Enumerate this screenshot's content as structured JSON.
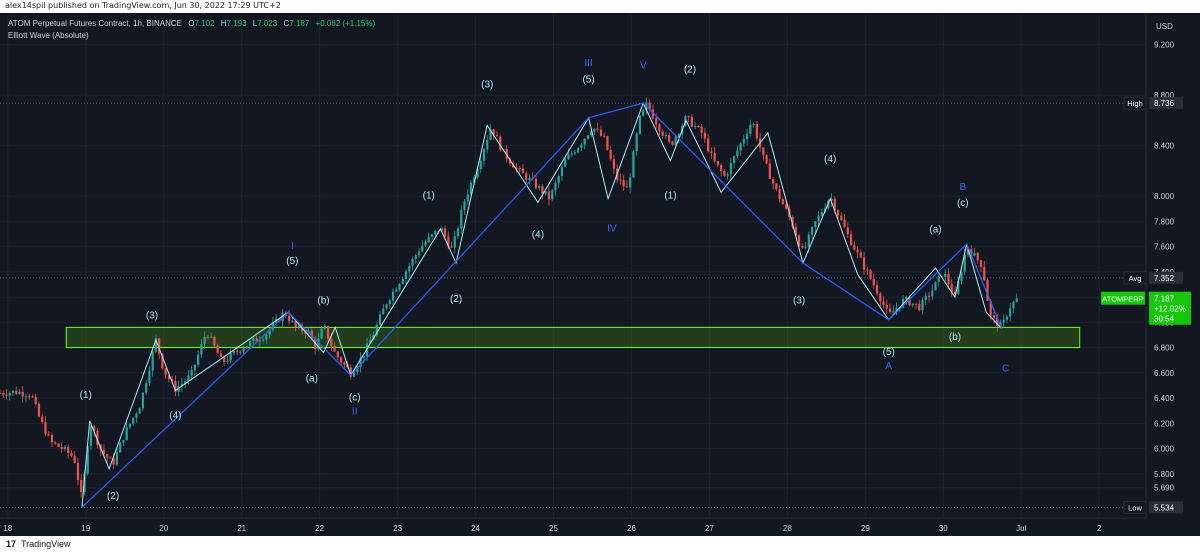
{
  "publish_line": "alex14spil published on TradingView.com, Jun 30, 2022 17:29 UTC+2",
  "header": {
    "symbol": "ATOM Perpetual Futures Contract, 1h, BINANCE",
    "o_label": "O",
    "o_value": "7.102",
    "h_label": "H",
    "h_value": "7.193",
    "l_label": "L",
    "l_value": "7.023",
    "c_label": "C",
    "c_value": "7.187",
    "change": "+0.082 (+1.15%)",
    "indicator": "Elliott Wave (Absolute)"
  },
  "footer": {
    "logo": "17",
    "brand": "TradingView"
  },
  "colors": {
    "background": "#131722",
    "up": "#26a69a",
    "down": "#ef5350",
    "green": "#76ff03",
    "wave_light": "#b2ebf2",
    "wave_blue": "#2962ff",
    "label_light": "#b2ebf2",
    "label_blue": "#2f6bff"
  },
  "chart_data": {
    "type": "candlestick",
    "symbol": "ATOMPERP",
    "currency": "USD",
    "ylim": [
      5.45,
      9.45
    ],
    "y_ticks": [
      "9.200",
      "8.800",
      "8.400",
      "8.000",
      "7.800",
      "7.600",
      "7.400",
      "7.200",
      "7.000",
      "6.800",
      "6.600",
      "6.400",
      "6.200",
      "6.000",
      "5.800",
      "5.690"
    ],
    "x_ticks": [
      "18",
      "19",
      "20",
      "21",
      "22",
      "23",
      "24",
      "25",
      "26",
      "27",
      "28",
      "29",
      "30",
      "Jul",
      "2"
    ],
    "x_range_days": [
      17.9,
      32.6
    ],
    "markers": {
      "high": {
        "label": "High",
        "value": 8.736
      },
      "avg": {
        "label": "Avg",
        "value": 7.352
      },
      "low": {
        "label": "Low",
        "value": 5.534
      },
      "last": {
        "label": "ATOMPERP",
        "value": "7.187",
        "change": "+12.02%",
        "countdown": "30:54"
      }
    },
    "zone": {
      "from_day": 18.75,
      "to_day": 31.75,
      "low": 6.8,
      "high": 6.96
    },
    "price_path": [
      [
        17.9,
        6.44
      ],
      [
        18.1,
        6.45
      ],
      [
        18.3,
        6.43
      ],
      [
        18.4,
        6.25
      ],
      [
        18.55,
        6.05
      ],
      [
        18.7,
        6.0
      ],
      [
        18.85,
        5.93
      ],
      [
        18.95,
        5.6
      ],
      [
        19.0,
        5.88
      ],
      [
        19.05,
        6.22
      ],
      [
        19.2,
        5.98
      ],
      [
        19.35,
        5.88
      ],
      [
        19.5,
        6.12
      ],
      [
        19.7,
        6.35
      ],
      [
        19.9,
        6.86
      ],
      [
        20.0,
        6.62
      ],
      [
        20.15,
        6.47
      ],
      [
        20.35,
        6.58
      ],
      [
        20.55,
        6.93
      ],
      [
        20.75,
        6.68
      ],
      [
        21.0,
        6.8
      ],
      [
        21.3,
        6.9
      ],
      [
        21.55,
        7.08
      ],
      [
        21.7,
        6.95
      ],
      [
        21.85,
        6.93
      ],
      [
        21.95,
        6.8
      ],
      [
        22.05,
        6.97
      ],
      [
        22.2,
        6.75
      ],
      [
        22.4,
        6.6
      ],
      [
        22.55,
        6.73
      ],
      [
        22.7,
        6.92
      ],
      [
        22.85,
        7.15
      ],
      [
        23.05,
        7.35
      ],
      [
        23.3,
        7.6
      ],
      [
        23.55,
        7.75
      ],
      [
        23.7,
        7.57
      ],
      [
        23.85,
        7.95
      ],
      [
        24.05,
        8.28
      ],
      [
        24.2,
        8.55
      ],
      [
        24.35,
        8.35
      ],
      [
        24.55,
        8.2
      ],
      [
        24.75,
        8.1
      ],
      [
        24.95,
        7.98
      ],
      [
        25.15,
        8.28
      ],
      [
        25.35,
        8.42
      ],
      [
        25.5,
        8.55
      ],
      [
        25.65,
        8.45
      ],
      [
        25.8,
        8.15
      ],
      [
        25.95,
        8.05
      ],
      [
        26.1,
        8.6
      ],
      [
        26.2,
        8.73
      ],
      [
        26.35,
        8.55
      ],
      [
        26.5,
        8.4
      ],
      [
        26.7,
        8.62
      ],
      [
        26.9,
        8.5
      ],
      [
        27.05,
        8.28
      ],
      [
        27.2,
        8.15
      ],
      [
        27.35,
        8.35
      ],
      [
        27.55,
        8.6
      ],
      [
        27.7,
        8.28
      ],
      [
        27.85,
        8.05
      ],
      [
        28.05,
        7.8
      ],
      [
        28.2,
        7.55
      ],
      [
        28.35,
        7.78
      ],
      [
        28.55,
        8.0
      ],
      [
        28.75,
        7.72
      ],
      [
        28.95,
        7.48
      ],
      [
        29.15,
        7.25
      ],
      [
        29.3,
        7.05
      ],
      [
        29.5,
        7.18
      ],
      [
        29.7,
        7.12
      ],
      [
        29.85,
        7.25
      ],
      [
        30.0,
        7.4
      ],
      [
        30.15,
        7.2
      ],
      [
        30.3,
        7.6
      ],
      [
        30.5,
        7.45
      ],
      [
        30.6,
        7.05
      ],
      [
        30.75,
        6.96
      ],
      [
        30.85,
        7.12
      ],
      [
        30.95,
        7.187
      ]
    ],
    "waves": [
      {
        "name": "white",
        "points": [
          [
            18.95,
            5.534
          ],
          [
            19.05,
            6.22
          ],
          [
            19.3,
            5.84
          ],
          [
            19.9,
            6.86
          ],
          [
            20.15,
            6.46
          ],
          [
            21.6,
            7.08
          ],
          [
            22.05,
            6.76
          ],
          [
            22.2,
            6.96
          ],
          [
            22.4,
            6.58
          ],
          [
            23.55,
            7.74
          ],
          [
            23.75,
            7.47
          ],
          [
            24.15,
            8.56
          ],
          [
            24.8,
            7.95
          ],
          [
            25.45,
            8.62
          ],
          [
            25.7,
            7.98
          ],
          [
            26.15,
            8.736
          ],
          [
            26.5,
            8.28
          ],
          [
            26.7,
            8.6
          ],
          [
            27.15,
            8.03
          ],
          [
            27.75,
            8.5
          ],
          [
            28.2,
            7.47
          ],
          [
            28.55,
            7.98
          ],
          [
            28.9,
            7.38
          ],
          [
            29.3,
            7.02
          ],
          [
            29.9,
            7.43
          ],
          [
            30.15,
            7.2
          ],
          [
            30.3,
            7.62
          ],
          [
            30.55,
            7.08
          ],
          [
            30.75,
            6.95
          ]
        ]
      },
      {
        "name": "blue",
        "points": [
          [
            18.95,
            5.534
          ],
          [
            21.6,
            7.08
          ],
          [
            22.4,
            6.58
          ],
          [
            25.45,
            8.62
          ],
          [
            26.15,
            8.736
          ],
          [
            28.2,
            7.47
          ],
          [
            29.3,
            7.02
          ],
          [
            30.3,
            7.62
          ],
          [
            30.75,
            6.95
          ]
        ]
      }
    ],
    "wave_labels": [
      {
        "text": "(1)",
        "day": 19.0,
        "price": 6.4,
        "color": "light"
      },
      {
        "text": "(2)",
        "day": 19.35,
        "price": 5.6,
        "color": "light"
      },
      {
        "text": "(3)",
        "day": 19.85,
        "price": 7.03,
        "color": "light"
      },
      {
        "text": "(4)",
        "day": 20.15,
        "price": 6.24,
        "color": "light"
      },
      {
        "text": "(5)",
        "day": 21.65,
        "price": 7.46,
        "color": "light"
      },
      {
        "text": "I",
        "day": 21.65,
        "price": 7.58,
        "color": "blue"
      },
      {
        "text": "(b)",
        "day": 22.05,
        "price": 7.15,
        "color": "light"
      },
      {
        "text": "(a)",
        "day": 21.9,
        "price": 6.53,
        "color": "light"
      },
      {
        "text": "(c)",
        "day": 22.45,
        "price": 6.38,
        "color": "light"
      },
      {
        "text": "II",
        "day": 22.45,
        "price": 6.27,
        "color": "blue"
      },
      {
        "text": "(1)",
        "day": 23.4,
        "price": 7.98,
        "color": "light"
      },
      {
        "text": "(2)",
        "day": 23.75,
        "price": 7.16,
        "color": "light"
      },
      {
        "text": "(3)",
        "day": 24.15,
        "price": 8.86,
        "color": "light"
      },
      {
        "text": "(4)",
        "day": 24.8,
        "price": 7.67,
        "color": "light"
      },
      {
        "text": "(5)",
        "day": 25.45,
        "price": 8.9,
        "color": "light"
      },
      {
        "text": "III",
        "day": 25.45,
        "price": 9.03,
        "color": "blue"
      },
      {
        "text": "IV",
        "day": 25.75,
        "price": 7.72,
        "color": "blue"
      },
      {
        "text": "V",
        "day": 26.15,
        "price": 9.01,
        "color": "blue"
      },
      {
        "text": "(1)",
        "day": 26.5,
        "price": 7.98,
        "color": "light"
      },
      {
        "text": "(2)",
        "day": 26.75,
        "price": 8.98,
        "color": "light"
      },
      {
        "text": "(3)",
        "day": 28.15,
        "price": 7.15,
        "color": "light"
      },
      {
        "text": "(4)",
        "day": 28.55,
        "price": 8.27,
        "color": "light"
      },
      {
        "text": "(5)",
        "day": 29.3,
        "price": 6.74,
        "color": "light"
      },
      {
        "text": "A",
        "day": 29.3,
        "price": 6.63,
        "color": "blue"
      },
      {
        "text": "(a)",
        "day": 29.9,
        "price": 7.71,
        "color": "light"
      },
      {
        "text": "(c)",
        "day": 30.25,
        "price": 7.92,
        "color": "light"
      },
      {
        "text": "B",
        "day": 30.25,
        "price": 8.05,
        "color": "blue"
      },
      {
        "text": "(b)",
        "day": 30.15,
        "price": 6.86,
        "color": "light"
      },
      {
        "text": "C",
        "day": 30.8,
        "price": 6.61,
        "color": "blue"
      }
    ]
  }
}
